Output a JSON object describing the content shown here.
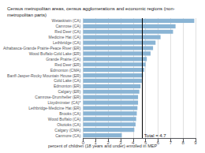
{
  "chart_data": {
    "type": "bar",
    "orientation": "horizontal",
    "title": "Census metropolitan areas, census agglomerations and economic regions (non-\nmetropolitan parts)",
    "categories": [
      "Wetaskiwin (CA)",
      "Camrose (CA)",
      "Red Deer (CA)",
      "Medicine Hat (CA)",
      "Lethbridge (CA)",
      "Athabasca-Grande Prairie-Peace River (ER)",
      "Wood Buffalo-Cold Lake (ER)",
      "Grande Prairie (CA)",
      "Red Deer (ER)",
      "Edmonton (CMA)",
      "Banff-Jasper-Rocky Mountain House (ER)",
      "Cold Lake (CA)",
      "Edmonton (ER)",
      "Calgary (ER)",
      "Camrose-Drumheller (ER)",
      "Lloydminster (CA)*",
      "Lethbridge-Medicine Hat (ER)",
      "Brooks (CA)",
      "Wood Buffalo (CA)",
      "Okotoks (CA)",
      "Calgary (CMA)",
      "Canmore (CA)"
    ],
    "values": [
      8.9,
      7.4,
      7.2,
      6.2,
      5.8,
      5.6,
      5.4,
      5.1,
      5.0,
      4.9,
      4.8,
      4.7,
      4.6,
      4.5,
      4.4,
      4.4,
      4.35,
      4.3,
      4.25,
      4.2,
      4.1,
      3.1
    ],
    "color": "#8ab4d4",
    "xlabel": "percent of children (18 years and under) enrolled in MEP",
    "xlim": [
      0,
      9
    ],
    "xticks": [
      0,
      1,
      2,
      3,
      4,
      5,
      6,
      7,
      8,
      9
    ],
    "grid": true,
    "annotations": [
      {
        "text": "Total = 4.7",
        "x": 4.7
      }
    ]
  }
}
